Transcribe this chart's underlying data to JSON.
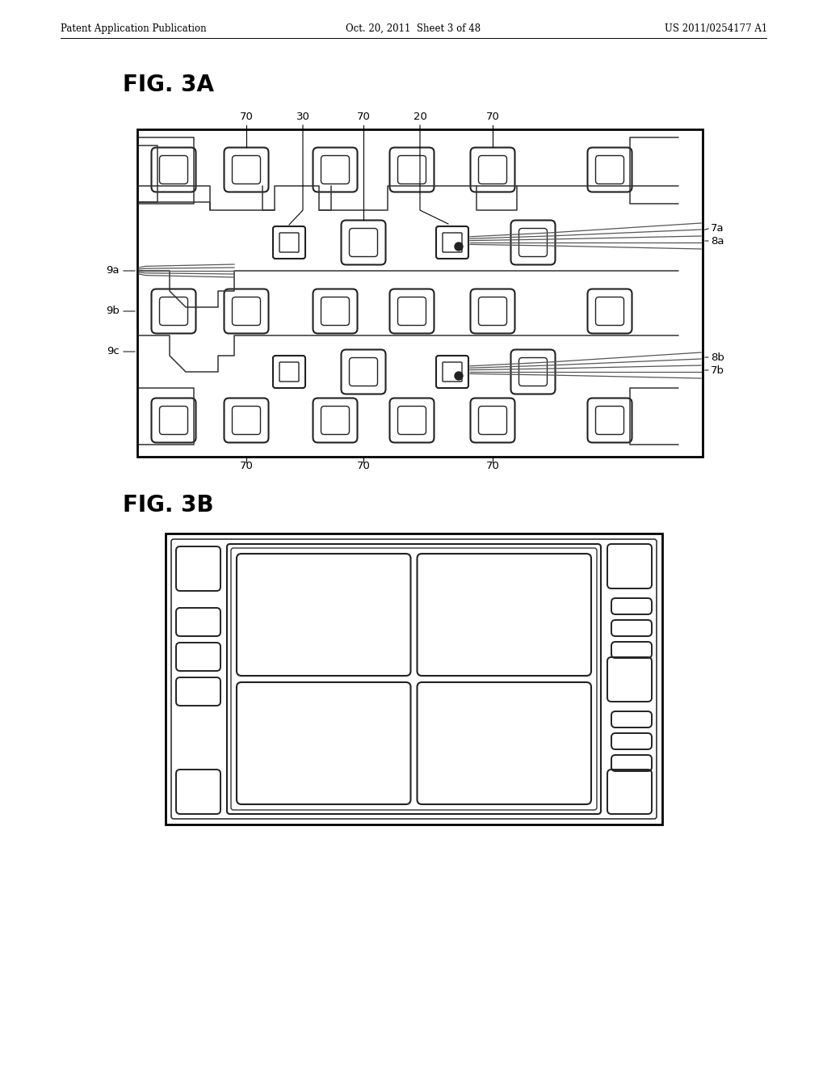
{
  "bg_color": "#ffffff",
  "line_color": "#000000",
  "header_left": "Patent Application Publication",
  "header_center": "Oct. 20, 2011  Sheet 3 of 48",
  "header_right": "US 2011/0254177 A1",
  "fig3a_label": "FIG. 3A",
  "fig3b_label": "FIG. 3B"
}
